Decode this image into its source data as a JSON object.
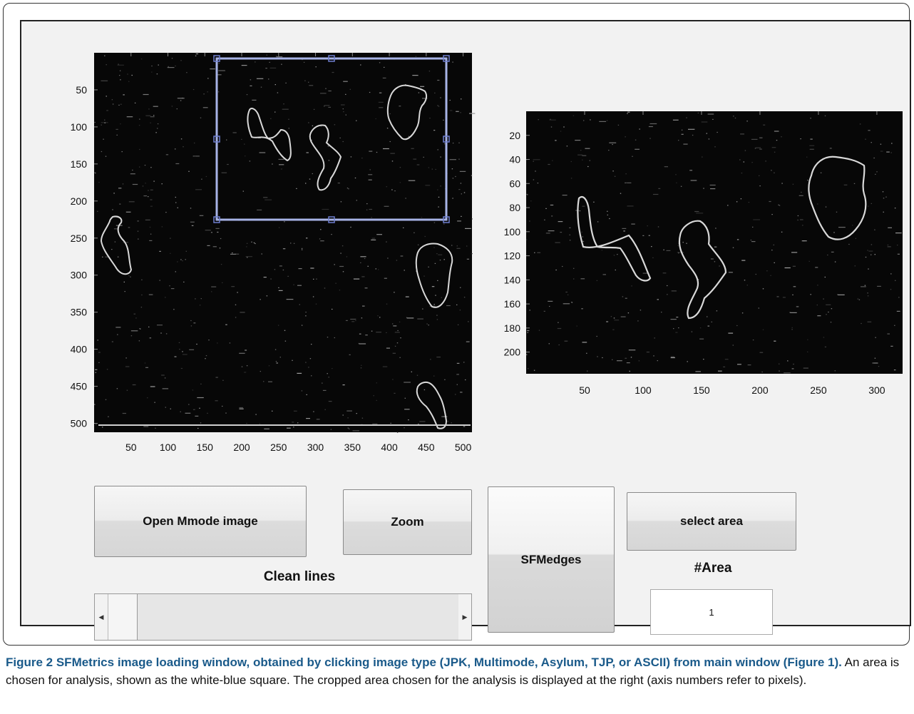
{
  "left_axes": {
    "y_ticks": [
      "50",
      "100",
      "150",
      "200",
      "250",
      "300",
      "350",
      "400",
      "450",
      "500"
    ],
    "x_ticks": [
      "50",
      "100",
      "150",
      "200",
      "250",
      "300",
      "350",
      "400",
      "450",
      "500"
    ],
    "selection_color": "#a7b3e6"
  },
  "right_axes": {
    "y_ticks": [
      "20",
      "40",
      "60",
      "80",
      "100",
      "120",
      "140",
      "160",
      "180",
      "200"
    ],
    "x_ticks": [
      "50",
      "100",
      "150",
      "200",
      "250",
      "300"
    ]
  },
  "buttons": {
    "open_image": "Open Mmode image",
    "zoom": "Zoom",
    "sfmedges": "SFMedges",
    "select_area": "select area"
  },
  "labels": {
    "clean_lines": "Clean lines",
    "area_heading": "#Area"
  },
  "area_input": {
    "value": "1"
  },
  "caption": {
    "bold": "Figure 2 SFMetrics image loading window, obtained by clicking image type (JPK, Multimode, Asylum, TJP, or ASCII) from main window (Figure 1).",
    "text": " An area is chosen for analysis, shown as the white-blue square. The cropped area chosen for the analysis is displayed at the right (axis numbers refer to pixels)."
  }
}
